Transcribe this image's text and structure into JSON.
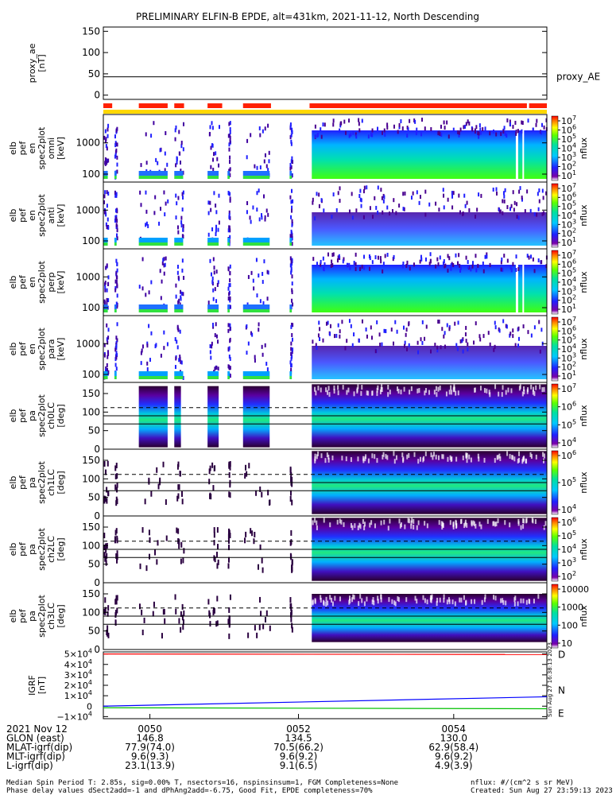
{
  "header": {
    "title": "PRELIMINARY ELFIN-B EPDE, alt=431km, 2021-11-12, North Descending"
  },
  "chart_data": [
    {
      "type": "line",
      "panel": "proxy_ae",
      "ylabel": [
        "proxy_ae",
        "[nT]"
      ],
      "ylim": [
        -10,
        160
      ],
      "yticks": [
        "150",
        "100",
        "50",
        "0"
      ],
      "series": [
        {
          "name": "proxy_AE",
          "values": [
            43,
            43
          ]
        }
      ]
    },
    {
      "type": "heatmap",
      "panel": "energy spectrogram (omni)",
      "ylabel": [
        "elb",
        "pef",
        "en",
        "spec2plot",
        "omni",
        "[keV]"
      ],
      "yticks": [
        "1000",
        "100"
      ],
      "log_y": true,
      "colorbar": {
        "label": "nflux",
        "ticks": [
          "10",
          "10",
          "10",
          "10",
          "10",
          "10",
          "10"
        ],
        "exps": [
          "7",
          "6",
          "5",
          "4",
          "3",
          "2",
          "1"
        ]
      }
    },
    {
      "type": "heatmap",
      "panel": "energy spectrogram (anti)",
      "ylabel": [
        "elb",
        "pef",
        "en",
        "spec2plot",
        "anti",
        "[keV]"
      ],
      "yticks": [
        "1000",
        "100"
      ],
      "log_y": true,
      "colorbar": {
        "label": "nflux",
        "ticks": [
          "10",
          "10",
          "10",
          "10",
          "10",
          "10",
          "10"
        ],
        "exps": [
          "7",
          "6",
          "5",
          "4",
          "3",
          "2",
          "1"
        ]
      }
    },
    {
      "type": "heatmap",
      "panel": "energy spectrogram (perp)",
      "ylabel": [
        "elb",
        "pef",
        "en",
        "spec2plot",
        "perp",
        "[keV]"
      ],
      "yticks": [
        "1000",
        "100"
      ],
      "log_y": true,
      "colorbar": {
        "label": "nflux",
        "ticks": [
          "10",
          "10",
          "10",
          "10",
          "10",
          "10",
          "10"
        ],
        "exps": [
          "7",
          "6",
          "5",
          "4",
          "3",
          "2",
          "1"
        ]
      }
    },
    {
      "type": "heatmap",
      "panel": "energy spectrogram (para)",
      "ylabel": [
        "elb",
        "pef",
        "en",
        "spec2plot",
        "para",
        "[keV]"
      ],
      "yticks": [
        "1000",
        "100"
      ],
      "log_y": true,
      "colorbar": {
        "label": "nflux",
        "ticks": [
          "10",
          "10",
          "10",
          "10",
          "10",
          "10",
          "10"
        ],
        "exps": [
          "7",
          "6",
          "5",
          "4",
          "3",
          "2",
          "1"
        ]
      }
    },
    {
      "type": "heatmap",
      "panel": "pitch angle ch0LC",
      "ylabel": [
        "elb",
        "pef",
        "pa",
        "spec2plot",
        "ch0LC",
        "[deg]"
      ],
      "yticks": [
        "150",
        "100",
        "50",
        "0"
      ],
      "ylim": [
        0,
        180
      ],
      "colorbar": {
        "label": "nflux",
        "ticks": [
          "10",
          "10",
          "10",
          "10"
        ],
        "exps": [
          "7",
          "6",
          "5",
          "4"
        ]
      }
    },
    {
      "type": "heatmap",
      "panel": "pitch angle ch1LC",
      "ylabel": [
        "elb",
        "pef",
        "pa",
        "spec2plot",
        "ch1LC",
        "[deg]"
      ],
      "yticks": [
        "150",
        "100",
        "50",
        "0"
      ],
      "ylim": [
        0,
        180
      ],
      "colorbar": {
        "label": "nflux",
        "ticks": [
          "10",
          "10",
          "10"
        ],
        "exps": [
          "6",
          "5",
          "4"
        ]
      }
    },
    {
      "type": "heatmap",
      "panel": "pitch angle ch2LC",
      "ylabel": [
        "elb",
        "pef",
        "pa",
        "spec2plot",
        "ch2LC",
        "[deg]"
      ],
      "yticks": [
        "150",
        "100",
        "50",
        "0"
      ],
      "ylim": [
        0,
        180
      ],
      "colorbar": {
        "label": "nflux",
        "ticks": [
          "10",
          "10",
          "10",
          "10",
          "10"
        ],
        "exps": [
          "6",
          "5",
          "4",
          "3",
          "2"
        ]
      }
    },
    {
      "type": "heatmap",
      "panel": "pitch angle ch3LC",
      "ylabel": [
        "elb",
        "pef",
        "pa",
        "spec2plot",
        "ch3LC",
        "[deg]"
      ],
      "yticks": [
        "150",
        "100",
        "50",
        "0"
      ],
      "ylim": [
        0,
        180
      ],
      "colorbar": {
        "label": "nflux",
        "ticks": [
          "10000",
          "1000",
          "100",
          "10"
        ],
        "exps": [
          "",
          "",
          "",
          ""
        ]
      }
    },
    {
      "type": "line",
      "panel": "IGRF",
      "ylabel": [
        "IGRF",
        "[nT]"
      ],
      "ylim": [
        -12000,
        52000
      ],
      "yticks": [
        "5×10",
        "4×10",
        "3×10",
        "2×10",
        "1×10",
        "0",
        "−1×10"
      ],
      "ytick_exps": [
        "4",
        "4",
        "4",
        "4",
        "4",
        "",
        "4"
      ],
      "series": [
        {
          "name": "D",
          "color": "#ff0000",
          "values": [
            50000,
            49500
          ]
        },
        {
          "name": "N",
          "color": "#0000ff",
          "values": [
            0,
            9000
          ]
        },
        {
          "name": "E",
          "color": "#00c000",
          "values": [
            -1500,
            -2500
          ]
        }
      ]
    }
  ],
  "quality_bars": {
    "red": [
      [
        0.0,
        0.02
      ],
      [
        0.08,
        0.145
      ],
      [
        0.16,
        0.182
      ],
      [
        0.235,
        0.268
      ],
      [
        0.315,
        0.378
      ],
      [
        0.465,
        0.955
      ],
      [
        0.96,
        1.0
      ]
    ],
    "yellow": [
      [
        0.0,
        1.0
      ]
    ]
  },
  "time_axis": {
    "tick_labels": [
      "0050",
      "0052",
      "0054"
    ],
    "rows": [
      {
        "label": "2021 Nov 12",
        "values": [
          "",
          "",
          ""
        ]
      },
      {
        "label": "GLON (east)",
        "values": [
          "146.8",
          "134.5",
          "130.0"
        ]
      },
      {
        "label": "MLAT-igrf(dip)",
        "values": [
          "77.9(74.0)",
          "70.5(66.2)",
          "62.9(58.4)"
        ]
      },
      {
        "label": "MLT-igrf(dip)",
        "values": [
          "9.6(9.3)",
          "9.6(9.2)",
          "9.6(9.2)"
        ]
      },
      {
        "label": "L-igrf(dip)",
        "values": [
          "23.1(13.9)",
          "9.1(6.5)",
          "4.9(3.9)"
        ]
      }
    ]
  },
  "footer": {
    "line1": "Median Spin Period T: 2.85s, sig=0.00% T, nsectors=16, nspinsinsum=1, FGM Completeness=None",
    "line2": "Phase delay values dSect2add=-1 and dPhAng2add=-6.75, Good Fit, EPDE completeness=70%",
    "units": "nflux: #/(cm^2 s sr MeV)",
    "created": "Created: Sun Aug 27 23:59:13 2023",
    "vertical_stamp": "Sun Aug 27 16:38:13 2023"
  },
  "colors": {
    "red_bar": "#ff2000",
    "yellow_bar": "#ffd800",
    "dashed_line": "#000000"
  }
}
